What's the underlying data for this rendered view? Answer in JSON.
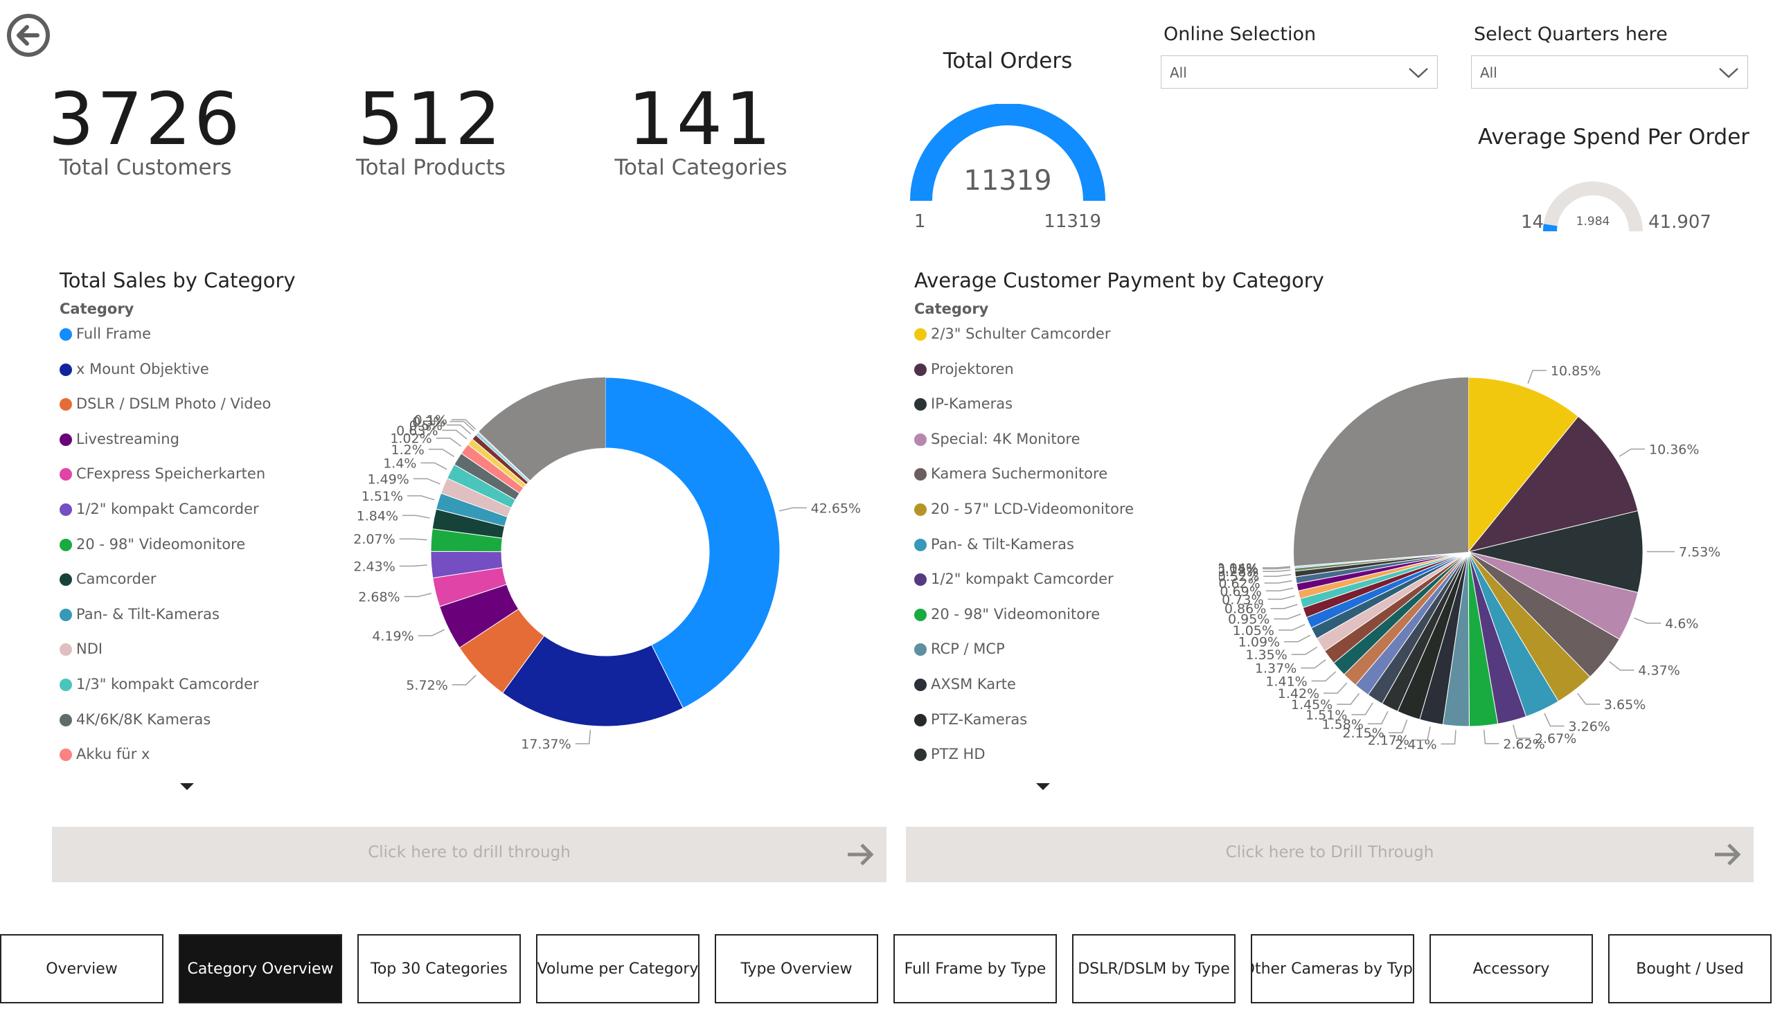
{
  "kpis": [
    {
      "value": "3726",
      "label": "Total Customers"
    },
    {
      "value": "512",
      "label": "Total Products"
    },
    {
      "value": "141",
      "label": "Total Categories"
    }
  ],
  "orders_gauge": {
    "title": "Total Orders",
    "value": "11319",
    "min": "1",
    "max": "11319",
    "fraction": 1.0,
    "color": "#118dff"
  },
  "spend_gauge": {
    "title": "Average Spend Per Order",
    "value": "1.984",
    "min": "14",
    "max": "41.907",
    "fraction": 0.047,
    "color": "#118dff"
  },
  "slicers": [
    {
      "title": "Online Selection",
      "value": "All"
    },
    {
      "title": "Select Quarters here",
      "value": "All"
    }
  ],
  "sales_chart": {
    "title": "Total Sales by Category",
    "legend_title": "Category",
    "legend": [
      {
        "label": "Full Frame",
        "color": "#118dff"
      },
      {
        "label": "x Mount Objektive",
        "color": "#12239e"
      },
      {
        "label": "DSLR / DSLM Photo / Video",
        "color": "#e66c37"
      },
      {
        "label": "Livestreaming",
        "color": "#6b007b"
      },
      {
        "label": "CFexpress Speicherkarten",
        "color": "#e044a7"
      },
      {
        "label": "1/2\" kompakt Camcorder",
        "color": "#744ec2"
      },
      {
        "label": "20 - 98\" Videomonitore",
        "color": "#1aab40"
      },
      {
        "label": "Camcorder",
        "color": "#15433a"
      },
      {
        "label": "Pan- & Tilt-Kameras",
        "color": "#3599b8"
      },
      {
        "label": "NDI",
        "color": "#dfbfbf"
      },
      {
        "label": "1/3\" kompakt Camcorder",
        "color": "#4ac5bb"
      },
      {
        "label": "4K/6K/8K Kameras",
        "color": "#5f6b6d"
      },
      {
        "label": "Akku für x",
        "color": "#fb8281"
      }
    ]
  },
  "payment_chart": {
    "title": "Average Customer Payment by Category",
    "legend_title": "Category",
    "legend": [
      {
        "label": "2/3\" Schulter Camcorder",
        "color": "#f2c80f"
      },
      {
        "label": "Projektoren",
        "color": "#4f3249"
      },
      {
        "label": "IP-Kameras",
        "color": "#2a3436"
      },
      {
        "label": "Special: 4K Monitore",
        "color": "#b887ad"
      },
      {
        "label": "Kamera Suchermonitore",
        "color": "#6b5e5e"
      },
      {
        "label": "20 - 57\" LCD-Videomonitore",
        "color": "#b59525"
      },
      {
        "label": "Pan- & Tilt-Kameras",
        "color": "#3599b8"
      },
      {
        "label": "1/2\" kompakt Camcorder",
        "color": "#553a80"
      },
      {
        "label": "20 - 98\" Videomonitore",
        "color": "#1aab40"
      },
      {
        "label": "RCP / MCP",
        "color": "#5f8fa0"
      },
      {
        "label": "AXSM Karte",
        "color": "#2a2f38"
      },
      {
        "label": "PTZ-Kameras",
        "color": "#262b28"
      },
      {
        "label": "PTZ HD",
        "color": "#2f3233"
      }
    ]
  },
  "chart_data": [
    {
      "type": "pie",
      "title": "Total Sales by Category",
      "donut": true,
      "labeled_percents": [
        "42.65%",
        "17.37%",
        "5.72%",
        "4.19%",
        "2.68%",
        "2.43%",
        "2.07%",
        "1.84%",
        "1.51%",
        "1.49%",
        "1.4%",
        "1.2%",
        "1.02%",
        "0.63%",
        "0.5%",
        "0.3%",
        "0.1%"
      ],
      "values": [
        42.65,
        17.37,
        5.72,
        4.19,
        2.68,
        2.43,
        2.07,
        1.84,
        1.51,
        1.49,
        1.4,
        1.2,
        1.02,
        0.63,
        0.5,
        0.3,
        0.1
      ],
      "colors": [
        "#118dff",
        "#12239e",
        "#e66c37",
        "#6b007b",
        "#e044a7",
        "#744ec2",
        "#1aab40",
        "#15433a",
        "#3599b8",
        "#dfbfbf",
        "#4ac5bb",
        "#5f6b6d",
        "#fb8281",
        "#f4d25a",
        "#7f312f",
        "#8ad4eb",
        "#fe9666"
      ]
    },
    {
      "type": "pie",
      "title": "Average Customer Payment by Category",
      "donut": false,
      "labeled_percents": [
        "10.85%",
        "10.36%",
        "7.53%",
        "4.6%",
        "4.37%",
        "3.65%",
        "3.26%",
        "2.67%",
        "2.62%",
        "2.41%",
        "2.17%",
        "2.15%",
        "1.58%",
        "1.51%",
        "1.45%",
        "1.42%",
        "1.41%",
        "1.37%",
        "1.35%",
        "1.09%",
        "1.05%",
        "0.95%",
        "0.86%",
        "0.73%",
        "0.69%",
        "0.62%",
        "0.52%",
        "0.28%",
        "0.15%",
        "0.04%"
      ],
      "values": [
        10.85,
        10.36,
        7.53,
        4.6,
        4.37,
        3.65,
        3.26,
        2.67,
        2.62,
        2.41,
        2.17,
        2.15,
        1.58,
        1.51,
        1.45,
        1.42,
        1.41,
        1.37,
        1.35,
        1.09,
        1.05,
        0.95,
        0.86,
        0.73,
        0.69,
        0.62,
        0.52,
        0.28,
        0.15,
        0.04
      ],
      "colors": [
        "#f2c80f",
        "#4f3249",
        "#2a3436",
        "#b887ad",
        "#6b5e5e",
        "#b59525",
        "#3599b8",
        "#553a80",
        "#1aab40",
        "#5f8fa0",
        "#2a2f38",
        "#262b28",
        "#2f3233",
        "#3e4a5a",
        "#6c7fb8",
        "#c0774f",
        "#176060",
        "#8a4a3a",
        "#e0c0c0",
        "#2f5f78",
        "#1e6fd9",
        "#7a1f2f",
        "#4ac5bb",
        "#f5a85a",
        "#6b007b",
        "#47698a",
        "#3a3a3a",
        "#6d8a5a",
        "#9ad0f0",
        "#5a4080"
      ]
    }
  ],
  "drill": {
    "left_label": "Click here to drill through",
    "right_label": "Click here to Drill Through"
  },
  "nav": [
    "Overview",
    "Category Overview",
    "Top 30 Categories",
    "Volume per Category",
    "Type Overview",
    "Full Frame by Type",
    "DSLR/DSLM by Type",
    "Other Cameras by Type",
    "Accessory",
    "Bought / Used"
  ],
  "nav_active": 1
}
